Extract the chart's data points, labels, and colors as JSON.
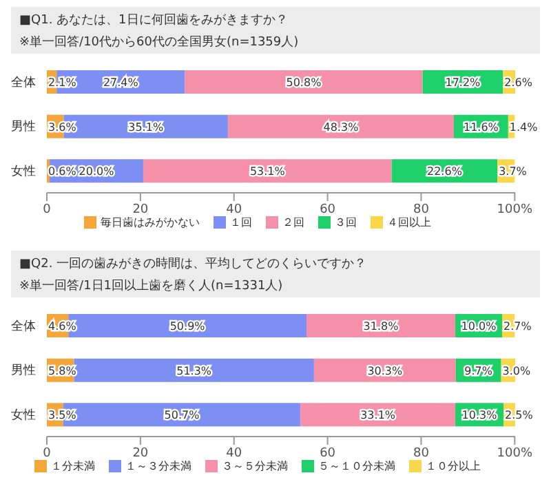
{
  "chart_data": [
    {
      "type": "bar",
      "orientation": "horizontal",
      "stacked": true,
      "title": "■Q1. あなたは、1日に何回歯をみがきますか？",
      "subtitle": "※単一回答/10代から60代の全国男女(n=1359人)",
      "categories": [
        "全体",
        "男性",
        "女性"
      ],
      "series": [
        {
          "name": "毎日歯はみがかない",
          "color": "#f4a63a",
          "values": [
            2.1,
            3.6,
            0.6
          ],
          "value_labels": [
            "2.1%",
            "3.6%",
            "0.6%"
          ]
        },
        {
          "name": "１回",
          "color": "#7d8ff2",
          "values": [
            27.4,
            35.1,
            20.0
          ],
          "value_labels": [
            "27.4%",
            "35.1%",
            "20.0%"
          ]
        },
        {
          "name": "２回",
          "color": "#f590aa",
          "values": [
            50.8,
            48.3,
            53.1
          ],
          "value_labels": [
            "50.8%",
            "48.3%",
            "53.1%"
          ]
        },
        {
          "name": "３回",
          "color": "#1fcf6a",
          "values": [
            17.2,
            11.6,
            22.6
          ],
          "value_labels": [
            "17.2%",
            "11.6%",
            "22.6%"
          ]
        },
        {
          "name": "４回以上",
          "color": "#f8d84a",
          "values": [
            2.6,
            1.4,
            3.7
          ],
          "value_labels": [
            "2.6%",
            "1.4%",
            "3.7%"
          ]
        }
      ],
      "xlim": [
        0,
        100.1
      ],
      "xticks": [
        0,
        20,
        40,
        60,
        80,
        {
          "value": 100,
          "label": "100%"
        }
      ],
      "grid": false,
      "legend": "bottom"
    },
    {
      "type": "bar",
      "orientation": "horizontal",
      "stacked": true,
      "title": "■Q2. 一回の歯みがきの時間は、平均してどのくらいですか？",
      "subtitle": "※単一回答/1日1回以上歯を磨く人(n=1331人)",
      "categories": [
        "全体",
        "男性",
        "女性"
      ],
      "series": [
        {
          "name": "１分未満",
          "color": "#f4a63a",
          "values": [
            4.6,
            5.8,
            3.5
          ],
          "value_labels": [
            "4.6%",
            "5.8%",
            "3.5%"
          ]
        },
        {
          "name": "１～３分未満",
          "color": "#7d8ff2",
          "values": [
            50.9,
            51.3,
            50.7
          ],
          "value_labels": [
            "50.9%",
            "51.3%",
            "50.7%"
          ]
        },
        {
          "name": "３～５分未満",
          "color": "#f590aa",
          "values": [
            31.8,
            30.3,
            33.1
          ],
          "value_labels": [
            "31.8%",
            "30.3%",
            "33.1%"
          ]
        },
        {
          "name": "５～１０分未満",
          "color": "#1fcf6a",
          "values": [
            10.0,
            9.7,
            10.3
          ],
          "value_labels": [
            "10.0%",
            "9.7%",
            "10.3%"
          ]
        },
        {
          "name": "１０分以上",
          "color": "#f8d84a",
          "values": [
            2.7,
            3.0,
            2.5
          ],
          "value_labels": [
            "2.7%",
            "3.0%",
            "2.5%"
          ]
        }
      ],
      "xlim": [
        0,
        100.1
      ],
      "xticks": [
        0,
        20,
        40,
        60,
        80,
        {
          "value": 100,
          "label": "100%"
        }
      ],
      "grid": false,
      "legend": "bottom"
    }
  ]
}
